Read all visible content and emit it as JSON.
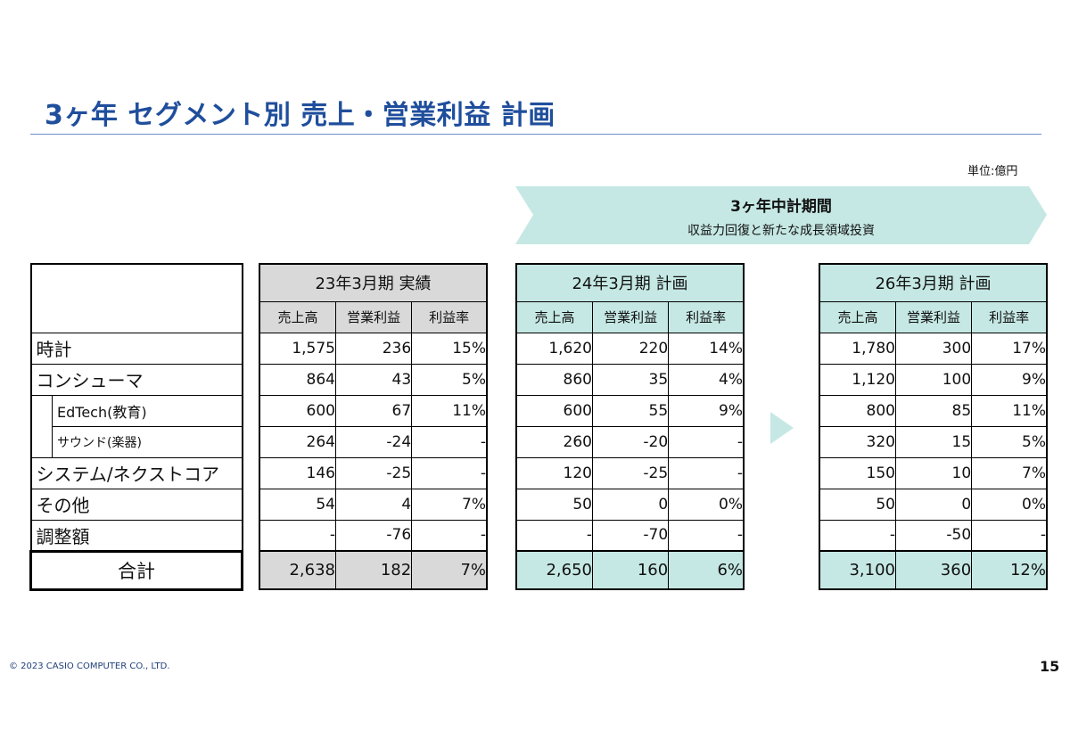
{
  "title": "3ヶ年 セグメント別 売上・営業利益 計画",
  "unit": "単位:億円",
  "banner": {
    "title": "3ヶ年中計期間",
    "subtitle": "収益力回復と新たな成長領域投資",
    "color": "#c5e8e4"
  },
  "rows": [
    {
      "label": "時計",
      "level": 1
    },
    {
      "label": "コンシューマ",
      "level": 1
    },
    {
      "label": "EdTech(教育)",
      "level": 2
    },
    {
      "label": "サウンド(楽器)",
      "level": 2
    },
    {
      "label": "システム/ネクストコア",
      "level": 1
    },
    {
      "label": "その他",
      "level": 1
    },
    {
      "label": "調整額",
      "level": 1
    }
  ],
  "total_label": "合計",
  "columns": [
    "売上高",
    "営業利益",
    "利益率"
  ],
  "periods": [
    {
      "title": "23年3月期 実績",
      "shade": "#d9d9d9",
      "values": [
        [
          "1,575",
          "236",
          "15%"
        ],
        [
          "864",
          "43",
          "5%"
        ],
        [
          "600",
          "67",
          "11%"
        ],
        [
          "264",
          "-24",
          "-"
        ],
        [
          "146",
          "-25",
          "-"
        ],
        [
          "54",
          "4",
          "7%"
        ],
        [
          "-",
          "-76",
          "-"
        ]
      ],
      "total": [
        "2,638",
        "182",
        "7%"
      ]
    },
    {
      "title": "24年3月期 計画",
      "shade": "#c5e8e4",
      "values": [
        [
          "1,620",
          "220",
          "14%"
        ],
        [
          "860",
          "35",
          "4%"
        ],
        [
          "600",
          "55",
          "9%"
        ],
        [
          "260",
          "-20",
          "-"
        ],
        [
          "120",
          "-25",
          "-"
        ],
        [
          "50",
          "0",
          "0%"
        ],
        [
          "-",
          "-70",
          "-"
        ]
      ],
      "total": [
        "2,650",
        "160",
        "6%"
      ]
    },
    {
      "title": "26年3月期 計画",
      "shade": "#c5e8e4",
      "values": [
        [
          "1,780",
          "300",
          "17%"
        ],
        [
          "1,120",
          "100",
          "9%"
        ],
        [
          "800",
          "85",
          "11%"
        ],
        [
          "320",
          "15",
          "5%"
        ],
        [
          "150",
          "10",
          "7%"
        ],
        [
          "50",
          "0",
          "0%"
        ],
        [
          "-",
          "-50",
          "-"
        ]
      ],
      "total": [
        "3,100",
        "360",
        "12%"
      ]
    }
  ],
  "footer": "© 2023 CASIO COMPUTER CO., LTD.",
  "page_number": "15"
}
